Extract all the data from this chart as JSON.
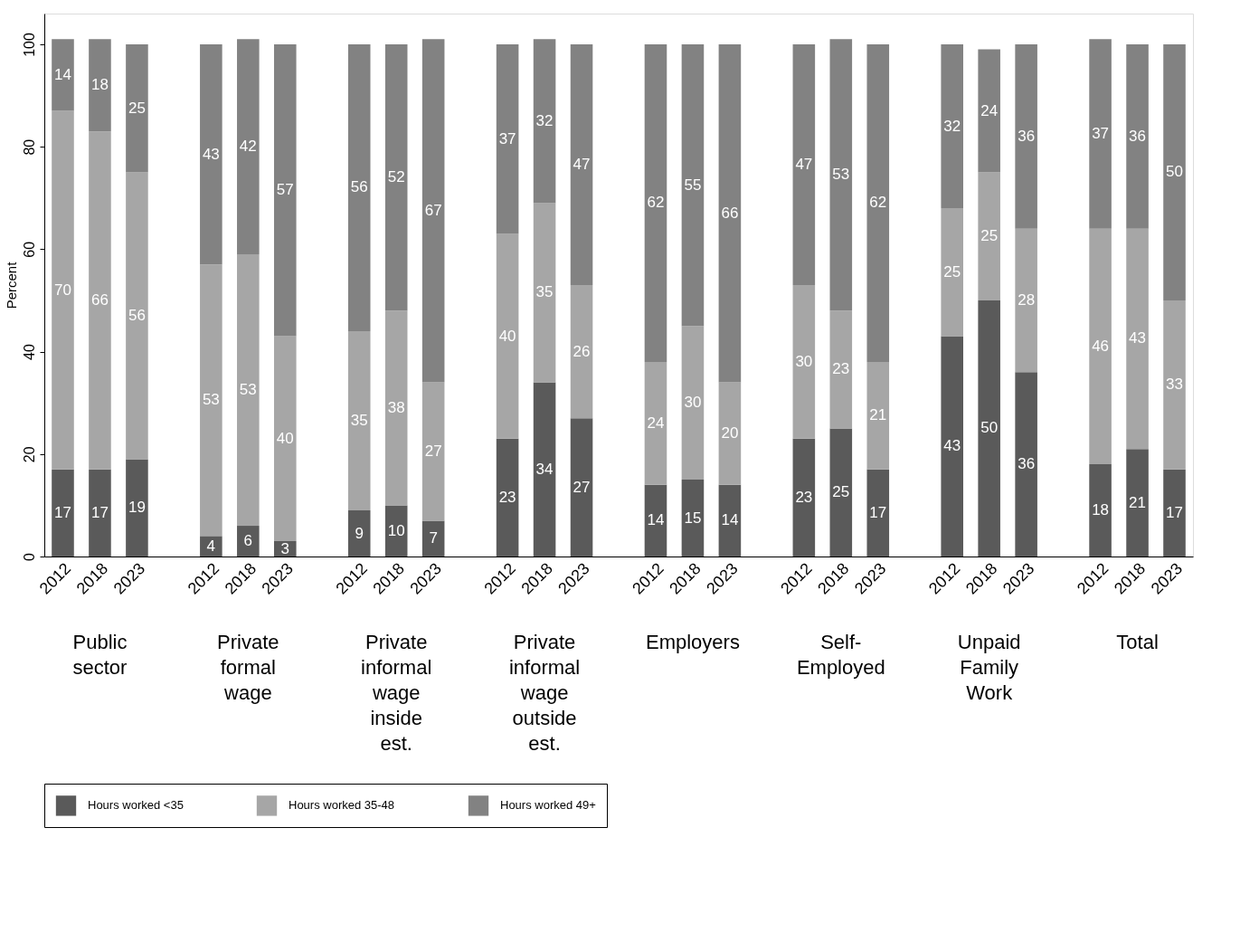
{
  "chart_data": {
    "type": "bar",
    "stacked": true,
    "ylabel": "Percent",
    "ylim": [
      0,
      106
    ],
    "yticks": [
      0,
      20,
      40,
      60,
      80,
      100
    ],
    "grid": false,
    "legend": "bottom",
    "data_labels": true,
    "categories": [
      "2012",
      "2018",
      "2023",
      "2012",
      "2018",
      "2023",
      "2012",
      "2018",
      "2023",
      "2012",
      "2018",
      "2023",
      "2012",
      "2018",
      "2023",
      "2012",
      "2018",
      "2023",
      "2012",
      "2018",
      "2023",
      "2012",
      "2018",
      "2023"
    ],
    "series": [
      {
        "name": "Hours worked <35",
        "color": "#5a5a5a",
        "values": [
          17,
          17,
          19,
          4,
          6,
          3,
          9,
          10,
          7,
          23,
          34,
          27,
          14,
          15,
          14,
          23,
          25,
          17,
          43,
          50,
          36,
          18,
          21,
          17
        ]
      },
      {
        "name": "Hours worked 35-48",
        "color": "#a6a6a6",
        "values": [
          70,
          66,
          56,
          53,
          53,
          40,
          35,
          38,
          27,
          40,
          35,
          26,
          24,
          30,
          20,
          30,
          23,
          21,
          25,
          25,
          28,
          46,
          43,
          33
        ]
      },
      {
        "name": "Hours worked 49+",
        "color": "#828282",
        "values": [
          14,
          18,
          25,
          43,
          42,
          57,
          56,
          52,
          67,
          37,
          32,
          47,
          62,
          55,
          66,
          47,
          53,
          62,
          32,
          24,
          36,
          37,
          36,
          50
        ]
      }
    ],
    "annotations": [
      "Public sector",
      "Private formal wage",
      "Private informal wage inside est.",
      "Private informal wage outside est.",
      "Employers",
      "Self-Employed",
      "Unpaid Family Work",
      "Total"
    ]
  }
}
